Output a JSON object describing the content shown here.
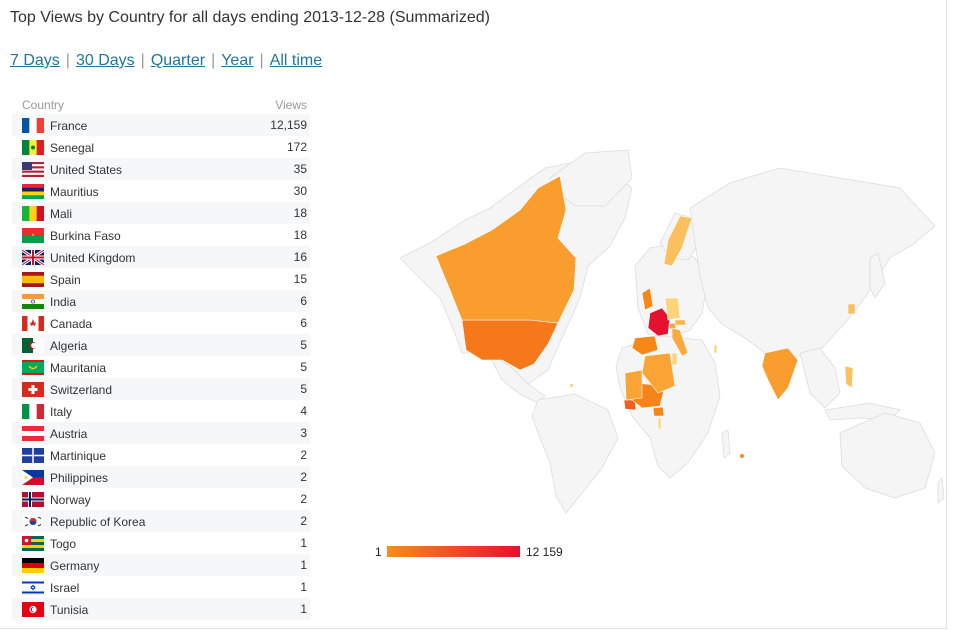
{
  "page": {
    "title": "Top Views by Country for all days ending 2013-12-28 (Summarized)"
  },
  "periods": [
    "7 Days",
    "30 Days",
    "Quarter",
    "Year",
    "All time"
  ],
  "table": {
    "headers": {
      "country": "Country",
      "views": "Views"
    },
    "rows": [
      {
        "country": "France",
        "views": "12,159",
        "flag": "france-flag-icon"
      },
      {
        "country": "Senegal",
        "views": "172",
        "flag": "senegal-flag-icon"
      },
      {
        "country": "United States",
        "views": "35",
        "flag": "united-states-flag-icon"
      },
      {
        "country": "Mauritius",
        "views": "30",
        "flag": "mauritius-flag-icon"
      },
      {
        "country": "Mali",
        "views": "18",
        "flag": "mali-flag-icon"
      },
      {
        "country": "Burkina Faso",
        "views": "18",
        "flag": "burkina-faso-flag-icon"
      },
      {
        "country": "United Kingdom",
        "views": "16",
        "flag": "united-kingdom-flag-icon"
      },
      {
        "country": "Spain",
        "views": "15",
        "flag": "spain-flag-icon"
      },
      {
        "country": "India",
        "views": "6",
        "flag": "india-flag-icon"
      },
      {
        "country": "Canada",
        "views": "6",
        "flag": "canada-flag-icon"
      },
      {
        "country": "Algeria",
        "views": "5",
        "flag": "algeria-flag-icon"
      },
      {
        "country": "Mauritania",
        "views": "5",
        "flag": "mauritania-flag-icon"
      },
      {
        "country": "Switzerland",
        "views": "5",
        "flag": "switzerland-flag-icon"
      },
      {
        "country": "Italy",
        "views": "4",
        "flag": "italy-flag-icon"
      },
      {
        "country": "Austria",
        "views": "3",
        "flag": "austria-flag-icon"
      },
      {
        "country": "Martinique",
        "views": "2",
        "flag": "martinique-flag-icon"
      },
      {
        "country": "Philippines",
        "views": "2",
        "flag": "philippines-flag-icon"
      },
      {
        "country": "Norway",
        "views": "2",
        "flag": "norway-flag-icon"
      },
      {
        "country": "Republic of Korea",
        "views": "2",
        "flag": "korea-flag-icon"
      },
      {
        "country": "Togo",
        "views": "1",
        "flag": "togo-flag-icon"
      },
      {
        "country": "Germany",
        "views": "1",
        "flag": "germany-flag-icon"
      },
      {
        "country": "Israel",
        "views": "1",
        "flag": "israel-flag-icon"
      },
      {
        "country": "Tunisia",
        "views": "1",
        "flag": "tunisia-flag-icon"
      }
    ]
  },
  "chart_data": {
    "type": "choropleth-map",
    "metric": "Views",
    "values": [
      {
        "country": "France",
        "value": 12159
      },
      {
        "country": "Senegal",
        "value": 172
      },
      {
        "country": "United States",
        "value": 35
      },
      {
        "country": "Mauritius",
        "value": 30
      },
      {
        "country": "Mali",
        "value": 18
      },
      {
        "country": "Burkina Faso",
        "value": 18
      },
      {
        "country": "United Kingdom",
        "value": 16
      },
      {
        "country": "Spain",
        "value": 15
      },
      {
        "country": "India",
        "value": 6
      },
      {
        "country": "Canada",
        "value": 6
      },
      {
        "country": "Algeria",
        "value": 5
      },
      {
        "country": "Mauritania",
        "value": 5
      },
      {
        "country": "Switzerland",
        "value": 5
      },
      {
        "country": "Italy",
        "value": 4
      },
      {
        "country": "Austria",
        "value": 3
      },
      {
        "country": "Martinique",
        "value": 2
      },
      {
        "country": "Philippines",
        "value": 2
      },
      {
        "country": "Norway",
        "value": 2
      },
      {
        "country": "Republic of Korea",
        "value": 2
      },
      {
        "country": "Togo",
        "value": 1
      },
      {
        "country": "Germany",
        "value": 1
      },
      {
        "country": "Israel",
        "value": 1
      },
      {
        "country": "Tunisia",
        "value": 1
      }
    ],
    "legend": {
      "min_label": "1",
      "max_label": "12 159",
      "min": 1,
      "max": 12159
    },
    "colors": {
      "low": "#f88e16",
      "high": "#e6102f",
      "tint": "#fdd37b",
      "no_data": "#f5f5f5",
      "border": "#dddddd"
    }
  }
}
